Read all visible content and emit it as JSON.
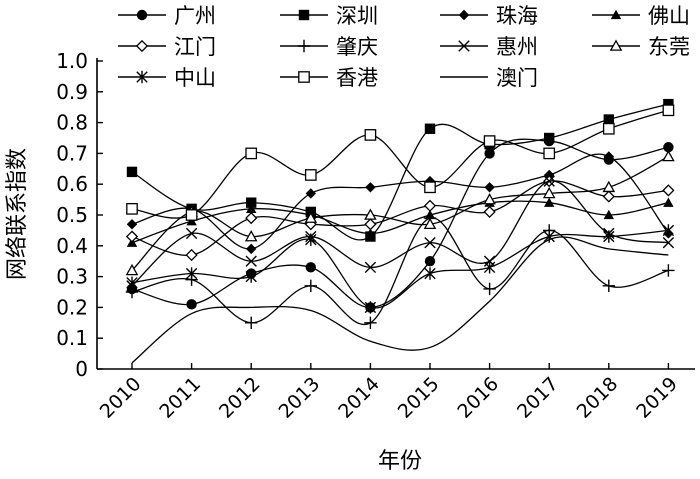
{
  "chart_data": {
    "type": "line",
    "title": "",
    "xlabel": "年份",
    "ylabel": "网络联系指数",
    "categories": [
      "2010",
      "2011",
      "2012",
      "2013",
      "2014",
      "2015",
      "2016",
      "2017",
      "2018",
      "2019"
    ],
    "ylim": [
      0,
      1.0
    ],
    "yticks": [
      "0",
      "0.1",
      "0.2",
      "0.3",
      "0.4",
      "0.5",
      "0.6",
      "0.7",
      "0.8",
      "0.9",
      "1.0"
    ],
    "legend_position": "top",
    "series": [
      {
        "name": "广州",
        "marker": "filled-circle",
        "values": [
          0.26,
          0.21,
          0.31,
          0.33,
          0.2,
          0.35,
          0.7,
          0.74,
          0.68,
          0.72
        ]
      },
      {
        "name": "深圳",
        "marker": "filled-square",
        "values": [
          0.64,
          0.52,
          0.54,
          0.51,
          0.43,
          0.78,
          0.73,
          0.75,
          0.81,
          0.86
        ]
      },
      {
        "name": "珠海",
        "marker": "filled-diamond",
        "values": [
          0.47,
          0.52,
          0.39,
          0.57,
          0.59,
          0.61,
          0.59,
          0.63,
          0.69,
          0.44
        ]
      },
      {
        "name": "佛山",
        "marker": "filled-triangle",
        "values": [
          0.41,
          0.48,
          0.52,
          0.5,
          0.44,
          0.5,
          0.54,
          0.54,
          0.5,
          0.54
        ]
      },
      {
        "name": "江门",
        "marker": "open-diamond",
        "values": [
          0.43,
          0.37,
          0.49,
          0.47,
          0.47,
          0.53,
          0.51,
          0.61,
          0.56,
          0.58
        ]
      },
      {
        "name": "肇庆",
        "marker": "plus",
        "values": [
          0.25,
          0.29,
          0.15,
          0.27,
          0.15,
          0.49,
          0.26,
          0.45,
          0.27,
          0.32
        ]
      },
      {
        "name": "惠州",
        "marker": "cross",
        "values": [
          0.27,
          0.44,
          0.35,
          0.43,
          0.33,
          0.41,
          0.35,
          0.61,
          0.44,
          0.41
        ]
      },
      {
        "name": "东莞",
        "marker": "open-triangle",
        "values": [
          0.32,
          0.51,
          0.43,
          0.49,
          0.5,
          0.47,
          0.55,
          0.57,
          0.59,
          0.69
        ]
      },
      {
        "name": "中山",
        "marker": "asterisk",
        "values": [
          0.28,
          0.31,
          0.3,
          0.42,
          0.2,
          0.31,
          0.33,
          0.43,
          0.43,
          0.45
        ]
      },
      {
        "name": "香港",
        "marker": "open-square",
        "values": [
          0.52,
          0.5,
          0.7,
          0.63,
          0.76,
          0.59,
          0.74,
          0.7,
          0.78,
          0.84
        ]
      },
      {
        "name": "澳门",
        "marker": "none",
        "values": [
          0.02,
          0.18,
          0.2,
          0.19,
          0.09,
          0.07,
          0.22,
          0.42,
          0.39,
          0.37
        ]
      }
    ]
  }
}
